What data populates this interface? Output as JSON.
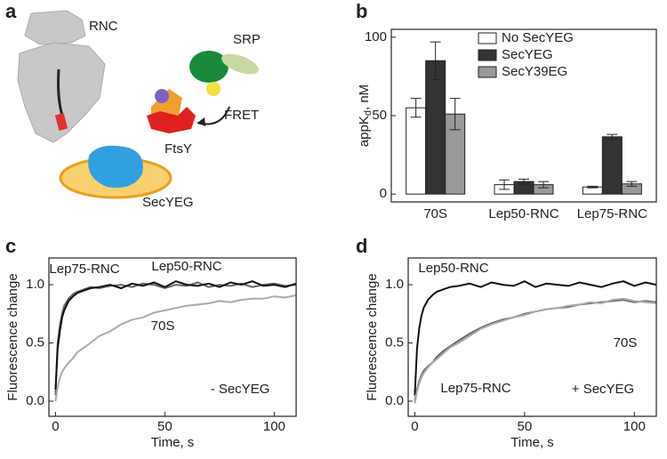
{
  "panel_letters": [
    "a",
    "b",
    "c",
    "d"
  ],
  "diagram": {
    "labels": [
      "RNC",
      "SRP",
      "FtsY",
      "FRET",
      "SecYEG"
    ]
  },
  "chart_data": [
    {
      "type": "bar",
      "y_label": {
        "main": "appK",
        "sub": "d",
        "unit": ", nM"
      },
      "categories": [
        "70S",
        "Lep50-RNC",
        "Lep75-RNC"
      ],
      "series": [
        {
          "name": "No SecYEG",
          "color": "#ffffff",
          "values": [
            55,
            6,
            4.5
          ],
          "errors": [
            6,
            3,
            0.5
          ]
        },
        {
          "name": "SecYEG",
          "color": "#333333",
          "values": [
            85,
            8,
            36.5
          ],
          "errors": [
            12,
            1.5,
            1.5
          ]
        },
        {
          "name": "SecY39EG",
          "color": "#999999",
          "values": [
            51,
            6,
            6.5
          ],
          "errors": [
            10,
            2,
            1.5
          ]
        }
      ],
      "ylim": [
        -5,
        105
      ],
      "yticks": [
        0,
        50,
        100
      ],
      "legend": "upper right"
    },
    {
      "type": "line",
      "x_label": "Time, s",
      "y_label": "Fluorescence change",
      "annotation": "- SecYEG",
      "x": [
        0,
        1,
        2,
        3,
        4,
        6,
        8,
        10,
        13,
        16,
        20,
        25,
        30,
        35,
        40,
        45,
        50,
        55,
        60,
        65,
        70,
        75,
        80,
        85,
        90,
        95,
        100,
        105,
        110
      ],
      "series": [
        {
          "name": "Lep75-RNC",
          "color": "#666666",
          "values": [
            0.05,
            0.5,
            0.65,
            0.75,
            0.82,
            0.88,
            0.92,
            0.94,
            0.96,
            0.98,
            0.97,
            0.99,
            1.0,
            0.98,
            1.01,
            1.0,
            0.97,
            1.0,
            0.99,
            1.02,
            0.98,
            1.0,
            0.99,
            1.01,
            0.98,
            1.0,
            1.01,
            0.99,
            1.0
          ]
        },
        {
          "name": "Lep50-RNC",
          "color": "#111111",
          "values": [
            0.1,
            0.45,
            0.6,
            0.72,
            0.78,
            0.86,
            0.9,
            0.93,
            0.95,
            0.97,
            0.98,
            1.0,
            0.97,
            1.01,
            0.99,
            1.02,
            0.98,
            1.03,
            1.0,
            0.99,
            1.01,
            0.98,
            1.02,
            1.0,
            1.03,
            0.99,
            1.0,
            0.98,
            1.01
          ]
        },
        {
          "name": "70S",
          "color": "#aaaaaa",
          "values": [
            0.0,
            0.12,
            0.2,
            0.25,
            0.28,
            0.33,
            0.37,
            0.42,
            0.46,
            0.5,
            0.56,
            0.6,
            0.66,
            0.7,
            0.72,
            0.76,
            0.78,
            0.8,
            0.82,
            0.83,
            0.84,
            0.86,
            0.85,
            0.87,
            0.88,
            0.88,
            0.9,
            0.89,
            0.91
          ]
        }
      ],
      "xlim": [
        -3,
        110
      ],
      "xticks": [
        0,
        50,
        100
      ],
      "ylim": [
        -0.13,
        1.23
      ],
      "yticks": [
        {
          "value": 0,
          "label": "0.0"
        },
        {
          "value": 0.5,
          "label": "0.5"
        },
        {
          "value": 1,
          "label": "1.0"
        }
      ]
    },
    {
      "type": "line",
      "x_label": "Time, s",
      "y_label": "Fluorescence change",
      "annotation": "+ SecYEG",
      "x": [
        0,
        1,
        2,
        3,
        4,
        6,
        8,
        10,
        13,
        16,
        20,
        25,
        30,
        35,
        40,
        45,
        50,
        55,
        60,
        65,
        70,
        75,
        80,
        85,
        90,
        95,
        100,
        105,
        110
      ],
      "series": [
        {
          "name": "Lep50-RNC",
          "color": "#111111",
          "values": [
            0.05,
            0.45,
            0.62,
            0.73,
            0.8,
            0.87,
            0.91,
            0.94,
            0.96,
            0.98,
            0.99,
            1.01,
            0.98,
            1.02,
            1.0,
            0.99,
            1.03,
            0.98,
            1.01,
            1.0,
            0.99,
            1.02,
            1.0,
            0.98,
            1.01,
            1.03,
            0.99,
            1.02,
            1.0
          ]
        },
        {
          "name": "Lep75-RNC",
          "color": "#666666",
          "values": [
            0.0,
            0.1,
            0.17,
            0.22,
            0.26,
            0.3,
            0.33,
            0.38,
            0.43,
            0.47,
            0.52,
            0.58,
            0.63,
            0.67,
            0.7,
            0.72,
            0.75,
            0.77,
            0.79,
            0.8,
            0.81,
            0.83,
            0.84,
            0.85,
            0.86,
            0.87,
            0.85,
            0.86,
            0.85
          ]
        },
        {
          "name": "70S",
          "color": "#aaaaaa",
          "values": [
            -0.02,
            0.08,
            0.15,
            0.2,
            0.24,
            0.29,
            0.33,
            0.36,
            0.41,
            0.46,
            0.5,
            0.56,
            0.62,
            0.66,
            0.69,
            0.72,
            0.74,
            0.77,
            0.79,
            0.8,
            0.82,
            0.83,
            0.85,
            0.84,
            0.87,
            0.88,
            0.86,
            0.85,
            0.84
          ]
        }
      ],
      "xlim": [
        -3,
        110
      ],
      "xticks": [
        0,
        50,
        100
      ],
      "ylim": [
        -0.13,
        1.23
      ],
      "yticks": [
        {
          "value": 0,
          "label": "0.0"
        },
        {
          "value": 0.5,
          "label": "0.5"
        },
        {
          "value": 1,
          "label": "1.0"
        }
      ]
    }
  ]
}
